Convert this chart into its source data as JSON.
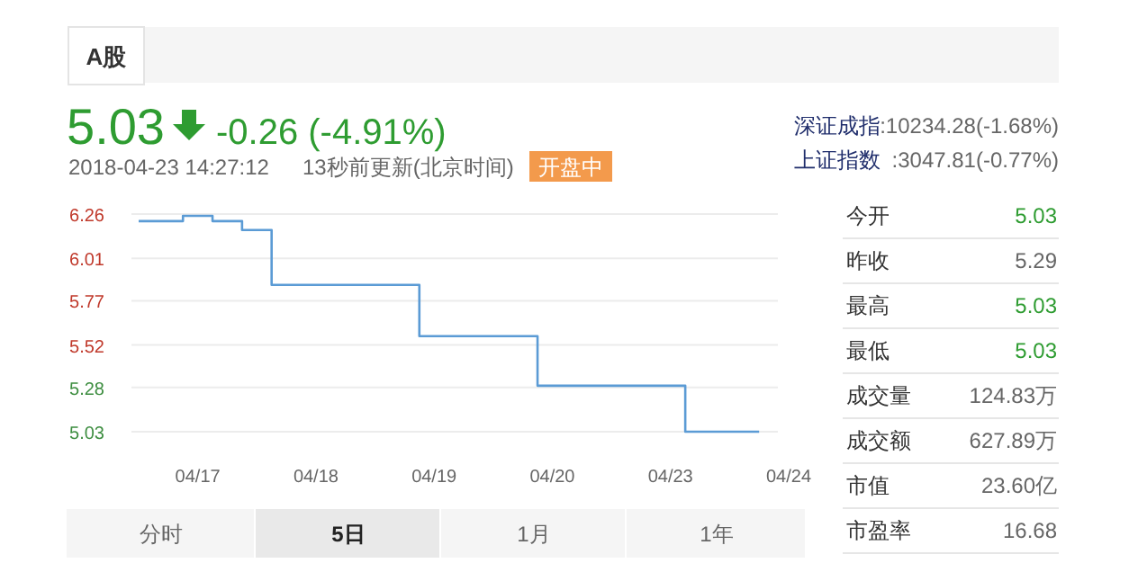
{
  "chart_data": {
    "type": "step",
    "categories": [
      null,
      null,
      "04/17",
      null,
      null,
      null,
      "04/18",
      null,
      null,
      null,
      "04/19",
      null,
      null,
      null,
      "04/20",
      null,
      null,
      null,
      "04/23",
      null,
      null,
      null,
      "04/24"
    ],
    "series": [
      {
        "color": "#5b9bd5",
        "values": [
          6.22,
          6.22,
          6.25,
          6.22,
          6.17,
          5.86,
          5.86,
          5.86,
          5.86,
          5.86,
          5.57,
          5.57,
          5.57,
          5.57,
          5.29,
          5.29,
          5.29,
          5.29,
          5.29,
          5.03,
          5.03,
          5.03,
          null
        ]
      }
    ],
    "ylim": [
      5.03,
      6.26
    ],
    "yticks": [
      5.03,
      5.28,
      5.52,
      5.77,
      6.01,
      6.26
    ],
    "grid": "y",
    "annotations": [
      "A股",
      "5.03",
      "-0.26 (-4.91%)",
      "2018-04-23 14:27:12",
      "13秒前更新(北京时间)",
      "开盘中",
      "深证成指",
      ":10234.28(-1.68%)",
      "上证指数",
      ":3047.81(-0.77%)",
      "今开",
      "5.03",
      "昨收",
      "5.29",
      "最高",
      "5.03",
      "最低",
      "5.03",
      "成交量",
      "124.83万",
      "成交额",
      "627.89万",
      "市值",
      "23.60亿",
      "市盈率",
      "16.68",
      "分时",
      "5日",
      "1月",
      "1年"
    ]
  }
}
